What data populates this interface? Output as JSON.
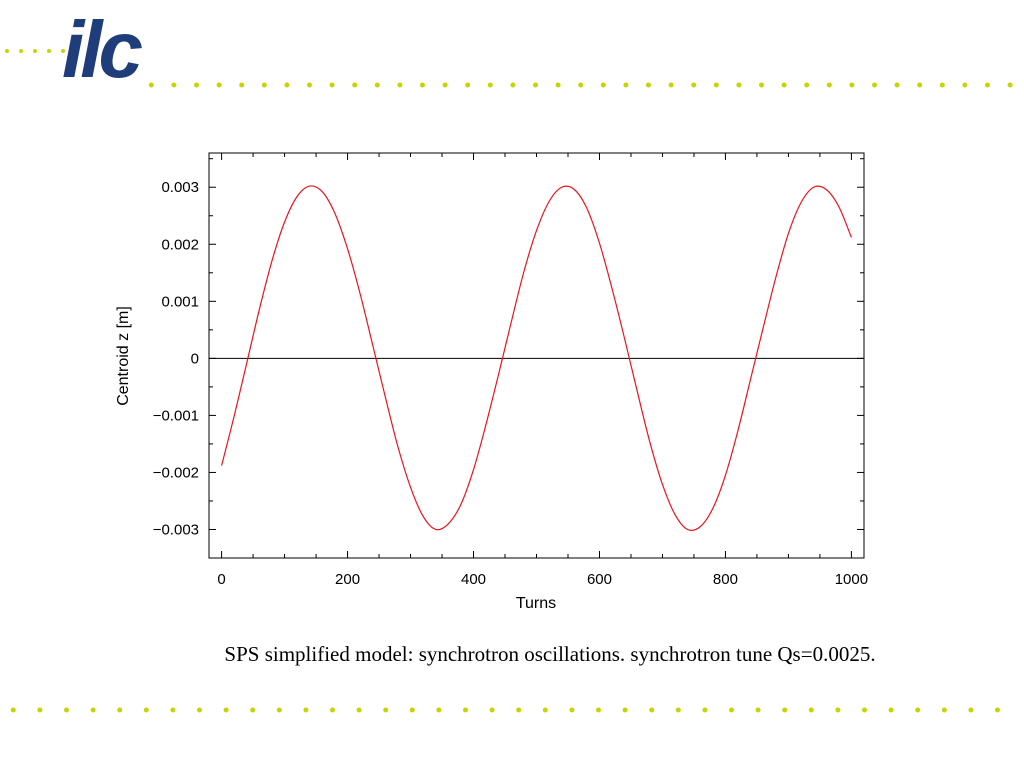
{
  "logo": {
    "text": "ilc",
    "color": "#1f3d7a"
  },
  "colors": {
    "dots": "#c8d400",
    "curve": "#e8141c",
    "zero_line": "#000000"
  },
  "caption": "SPS simplified model: synchrotron oscillations. synchrotron tune Qs=0.0025.",
  "chart_data": {
    "type": "line",
    "title": "",
    "xlabel": "Turns",
    "ylabel": "Centroid z  [m]",
    "xlim": [
      -20,
      1020
    ],
    "ylim": [
      -0.0035,
      0.0036
    ],
    "x_ticks": [
      0,
      200,
      400,
      600,
      800,
      1000
    ],
    "x_tick_labels": [
      "0",
      "200",
      "400",
      "600",
      "800",
      "1000"
    ],
    "y_ticks": [
      -0.003,
      -0.002,
      -0.001,
      0,
      0.001,
      0.002,
      0.003
    ],
    "y_tick_labels": [
      "−0.003",
      "−0.002",
      "−0.001",
      "0",
      "0.001",
      "0.002",
      "0.003"
    ],
    "grid": false,
    "legend": "none",
    "series": [
      {
        "x": [
          0,
          20,
          40,
          60,
          80,
          100,
          120,
          140,
          160,
          180,
          200,
          220,
          240,
          260,
          280,
          300,
          320,
          340,
          360,
          380,
          400,
          420,
          440,
          460,
          480,
          500,
          520,
          540,
          560,
          580,
          600,
          620,
          640,
          660,
          680,
          700,
          720,
          740,
          760,
          780,
          800,
          820,
          840,
          860,
          880,
          900,
          920,
          940,
          960,
          980,
          1000
        ],
        "y": [
          -0.00188,
          -0.00101,
          -8e-05,
          0.00086,
          0.00171,
          0.00239,
          0.00284,
          0.00302,
          0.00292,
          0.00254,
          0.00192,
          0.00113,
          0.00023,
          -0.00068,
          -0.00155,
          -0.00226,
          -0.00277,
          -0.003,
          -0.0029,
          -0.00256,
          -0.00195,
          -0.00115,
          -0.00027,
          0.00064,
          0.00152,
          0.00224,
          0.00275,
          0.003,
          0.00296,
          0.00263,
          0.00202,
          0.00122,
          0.00034,
          -0.00058,
          -0.00147,
          -0.00221,
          -0.00274,
          -0.003,
          -0.00295,
          -0.00263,
          -0.00205,
          -0.00126,
          -0.00036,
          0.00054,
          0.00142,
          0.00219,
          0.00273,
          0.003,
          0.00296,
          0.00266,
          0.00212
        ]
      }
    ]
  }
}
